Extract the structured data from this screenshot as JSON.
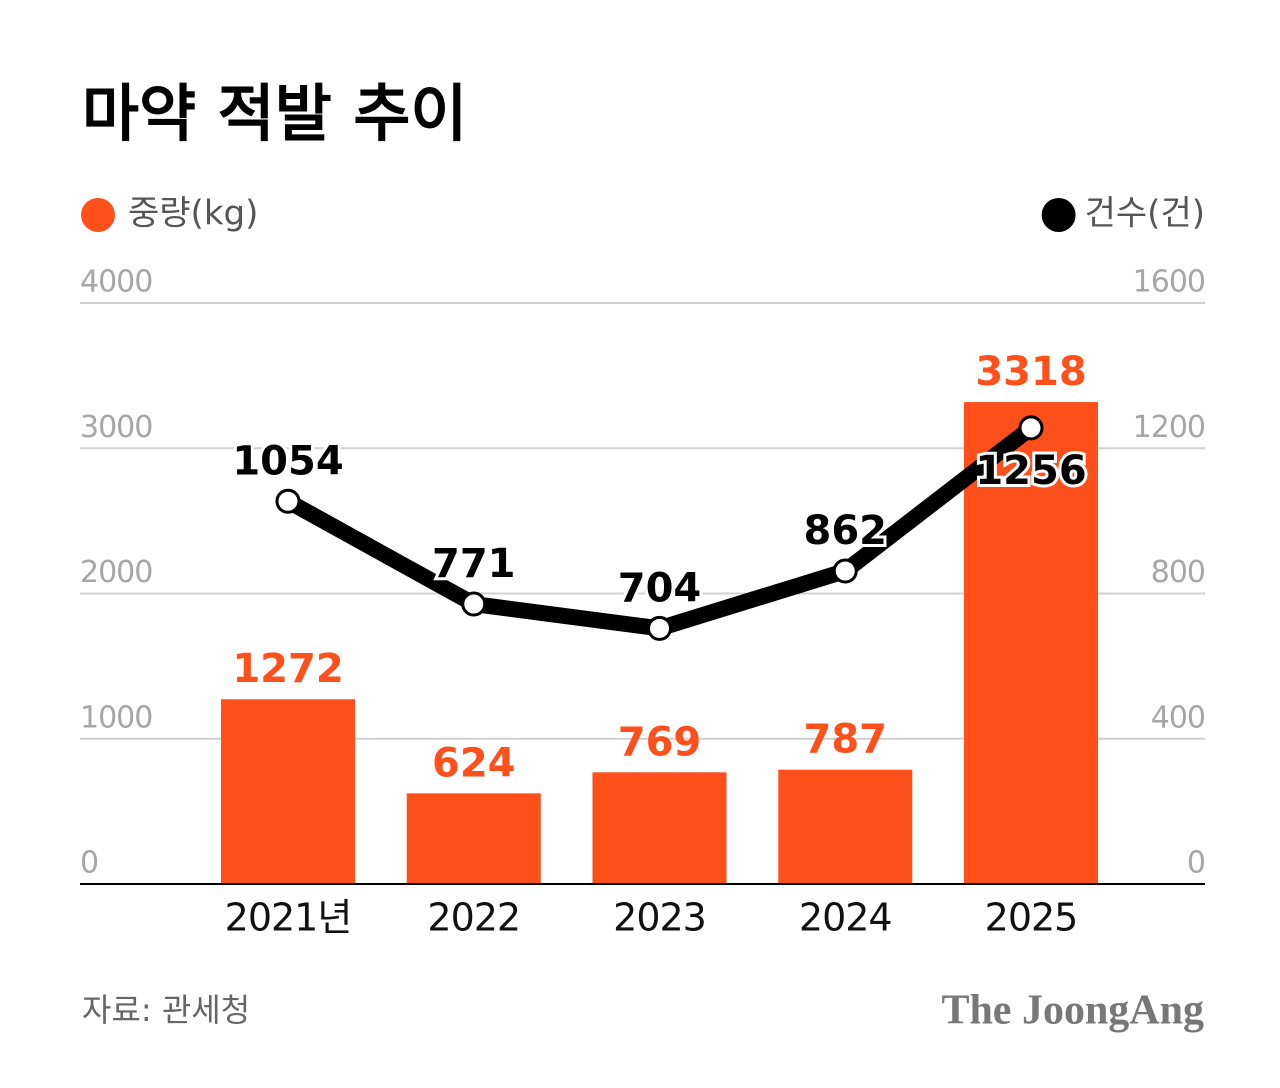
{
  "chart_data": {
    "type": "bar",
    "title": "마약 적발 추이",
    "categories": [
      "2021년",
      "2022",
      "2023",
      "2024",
      "2025"
    ],
    "series": [
      {
        "name": "중량(kg)",
        "color": "#ff4f1a",
        "values": [
          1272,
          624,
          769,
          787,
          3318
        ]
      },
      {
        "name": "건수(건)",
        "color": "#000000",
        "type": "line",
        "axis": "y2",
        "values": [
          1054,
          771,
          704,
          862,
          1256
        ]
      }
    ],
    "ylim": [
      0,
      4000
    ],
    "yticks": [
      0,
      1000,
      2000,
      3000,
      4000
    ],
    "y2lim": [
      0,
      1600
    ],
    "y2ticks": [
      0,
      400,
      800,
      1200,
      1600
    ],
    "grid": true,
    "source": "자료: 관세청",
    "brand": "The JoongAng"
  }
}
